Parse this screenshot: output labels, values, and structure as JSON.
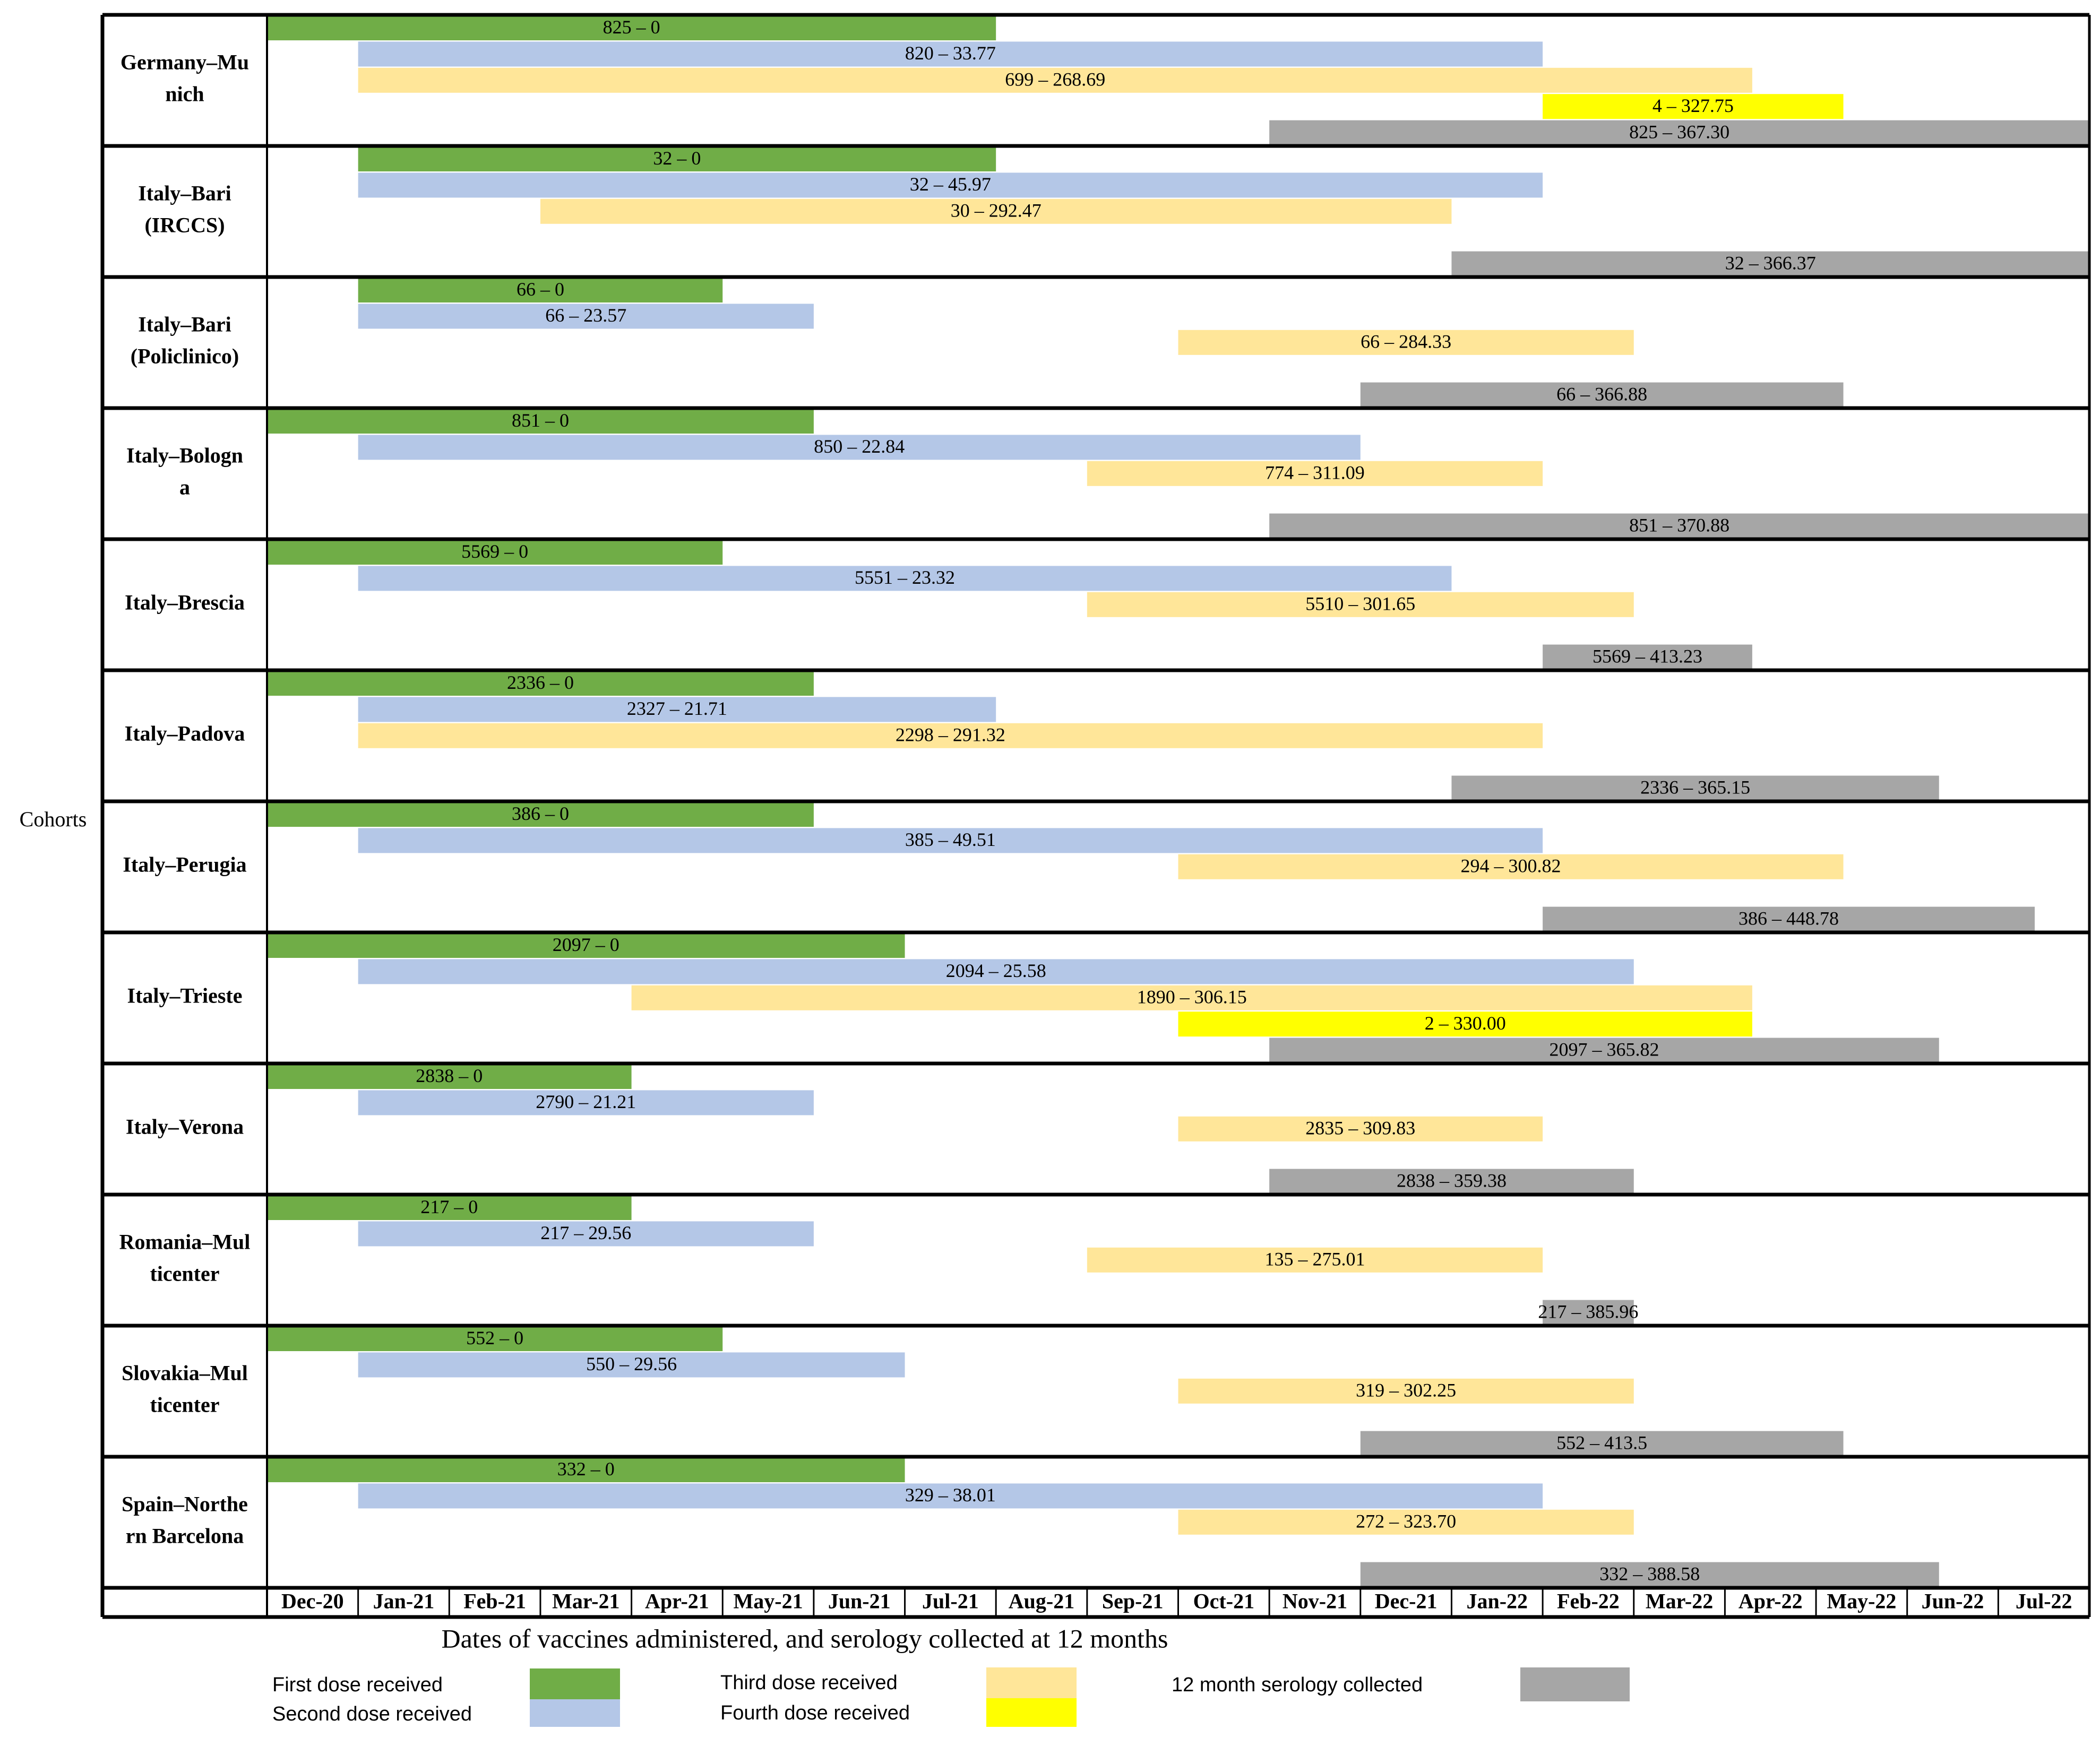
{
  "chart_data": {
    "type": "gantt",
    "title": "",
    "xlabel": "Dates of vaccines administered, and serology collected at 12 months",
    "ylabel": "Cohorts",
    "months": [
      "Dec-20",
      "Jan-21",
      "Feb-21",
      "Mar-21",
      "Apr-21",
      "May-21",
      "Jun-21",
      "Jul-21",
      "Aug-21",
      "Sep-21",
      "Oct-21",
      "Nov-21",
      "Dec-21",
      "Jan-22",
      "Feb-22",
      "Mar-22",
      "Apr-22",
      "May-22",
      "Jun-22",
      "Jul-22"
    ],
    "series": [
      {
        "key": "first",
        "name": "First dose received",
        "color": "#70ad47"
      },
      {
        "key": "second",
        "name": "Second dose received",
        "color": "#b4c7e7"
      },
      {
        "key": "third",
        "name": "Third dose received",
        "color": "#ffe699"
      },
      {
        "key": "fourth",
        "name": "Fourth dose received",
        "color": "#ffff00"
      },
      {
        "key": "serology",
        "name": "12 month serology collected",
        "color": "#a6a6a6"
      }
    ],
    "cohorts": [
      {
        "name": "Germany–Mu\nnich",
        "bars": [
          {
            "series": "first",
            "start": 0,
            "end": 8,
            "label": "825 – 0"
          },
          {
            "series": "second",
            "start": 1,
            "end": 14,
            "label": "820 – 33.77"
          },
          {
            "series": "third",
            "start": 1,
            "end": 16.3,
            "label": "699 – 268.69"
          },
          {
            "series": "fourth",
            "start": 14,
            "end": 17.3,
            "label": "4 – 327.75"
          },
          {
            "series": "serology",
            "start": 11,
            "end": 20,
            "label": "825 – 367.30"
          }
        ]
      },
      {
        "name": "Italy–Bari\n(IRCCS)",
        "bars": [
          {
            "series": "first",
            "start": 1,
            "end": 8,
            "label": "32 – 0"
          },
          {
            "series": "second",
            "start": 1,
            "end": 14,
            "label": "32 – 45.97"
          },
          {
            "series": "third",
            "start": 3,
            "end": 13,
            "label": "30 – 292.47"
          },
          {
            "series": "serology",
            "start": 13,
            "end": 20,
            "label": "32 – 366.37",
            "slot": 4
          }
        ]
      },
      {
        "name": "Italy–Bari\n(Policlinico)",
        "bars": [
          {
            "series": "first",
            "start": 1,
            "end": 5,
            "label": "66  – 0"
          },
          {
            "series": "second",
            "start": 1,
            "end": 6,
            "label": "66 – 23.57"
          },
          {
            "series": "third",
            "start": 10,
            "end": 15,
            "label": "66 – 284.33"
          },
          {
            "series": "serology",
            "start": 12,
            "end": 17.3,
            "label": "66 – 366.88",
            "slot": 4
          }
        ]
      },
      {
        "name": "Italy–Bologn\na",
        "bars": [
          {
            "series": "first",
            "start": 0,
            "end": 6,
            "label": "851 – 0"
          },
          {
            "series": "second",
            "start": 1,
            "end": 12,
            "label": "850 – 22.84"
          },
          {
            "series": "third",
            "start": 9,
            "end": 14,
            "label": "774 – 311.09"
          },
          {
            "series": "serology",
            "start": 11,
            "end": 20,
            "label": "851 – 370.88",
            "slot": 4
          }
        ]
      },
      {
        "name": "Italy–Brescia",
        "bars": [
          {
            "series": "first",
            "start": 0,
            "end": 5,
            "label": "5569 – 0"
          },
          {
            "series": "second",
            "start": 1,
            "end": 13,
            "label": "5551 – 23.32"
          },
          {
            "series": "third",
            "start": 9,
            "end": 15,
            "label": "5510 – 301.65"
          },
          {
            "series": "serology",
            "start": 14,
            "end": 16.3,
            "label": "5569 – 413.23",
            "slot": 4
          }
        ]
      },
      {
        "name": "Italy–Padova",
        "bars": [
          {
            "series": "first",
            "start": 0,
            "end": 6,
            "label": "2336 – 0"
          },
          {
            "series": "second",
            "start": 1,
            "end": 8,
            "label": "2327 – 21.71"
          },
          {
            "series": "third",
            "start": 1,
            "end": 14,
            "label": "2298 – 291.32"
          },
          {
            "series": "serology",
            "start": 13,
            "end": 18.35,
            "label": "2336 – 365.15",
            "slot": 4
          }
        ]
      },
      {
        "name": "Italy–Perugia",
        "bars": [
          {
            "series": "first",
            "start": 0,
            "end": 6,
            "label": "386 – 0"
          },
          {
            "series": "second",
            "start": 1,
            "end": 14,
            "label": "385 – 49.51"
          },
          {
            "series": "third",
            "start": 10,
            "end": 17.3,
            "label": "294 – 300.82"
          },
          {
            "series": "serology",
            "start": 14,
            "end": 19.4,
            "label": "386 – 448.78",
            "slot": 4
          }
        ]
      },
      {
        "name": "Italy–Trieste",
        "bars": [
          {
            "series": "first",
            "start": 0,
            "end": 7,
            "label": "2097 – 0"
          },
          {
            "series": "second",
            "start": 1,
            "end": 15,
            "label": "2094 – 25.58"
          },
          {
            "series": "third",
            "start": 4,
            "end": 16.3,
            "label": "1890 – 306.15"
          },
          {
            "series": "fourth",
            "start": 10,
            "end": 16.3,
            "label": "2 – 330.00"
          },
          {
            "series": "serology",
            "start": 11,
            "end": 18.35,
            "label": "2097 – 365.82"
          }
        ]
      },
      {
        "name": "Italy–Verona",
        "bars": [
          {
            "series": "first",
            "start": 0,
            "end": 4,
            "label": "2838 – 0"
          },
          {
            "series": "second",
            "start": 1,
            "end": 6,
            "label": "2790 – 21.21"
          },
          {
            "series": "third",
            "start": 10,
            "end": 14,
            "label": "2835 – 309.83",
            "slot": 2
          },
          {
            "series": "serology",
            "start": 11,
            "end": 15,
            "label": "2838 – 359.38",
            "slot": 4
          }
        ]
      },
      {
        "name": "Romania–Mul\nticenter",
        "bars": [
          {
            "series": "first",
            "start": 0,
            "end": 4,
            "label": "217 – 0"
          },
          {
            "series": "second",
            "start": 1,
            "end": 6,
            "label": "217 – 29.56"
          },
          {
            "series": "third",
            "start": 9,
            "end": 14,
            "label": "135 – 275.01",
            "slot": 2
          },
          {
            "series": "serology",
            "start": 14,
            "end": 15,
            "label": "217 – 385.96",
            "slot": 4
          }
        ]
      },
      {
        "name": "Slovakia–Mul\nticenter",
        "bars": [
          {
            "series": "first",
            "start": 0,
            "end": 5,
            "label": "552 – 0"
          },
          {
            "series": "second",
            "start": 1,
            "end": 7,
            "label": "550 – 29.56"
          },
          {
            "series": "third",
            "start": 10,
            "end": 15,
            "label": "319 – 302.25",
            "slot": 2
          },
          {
            "series": "serology",
            "start": 12,
            "end": 17.3,
            "label": "552 – 413.5",
            "slot": 4
          }
        ]
      },
      {
        "name": "Spain–Northe\nrn Barcelona",
        "bars": [
          {
            "series": "first",
            "start": 0,
            "end": 7,
            "label": "332 – 0"
          },
          {
            "series": "second",
            "start": 1,
            "end": 14,
            "label": "329 – 38.01"
          },
          {
            "series": "third",
            "start": 10,
            "end": 15,
            "label": "272 – 323.70",
            "slot": 2
          },
          {
            "series": "serology",
            "start": 12,
            "end": 18.35,
            "label": "332 – 388.58",
            "slot": 4
          }
        ]
      }
    ]
  }
}
